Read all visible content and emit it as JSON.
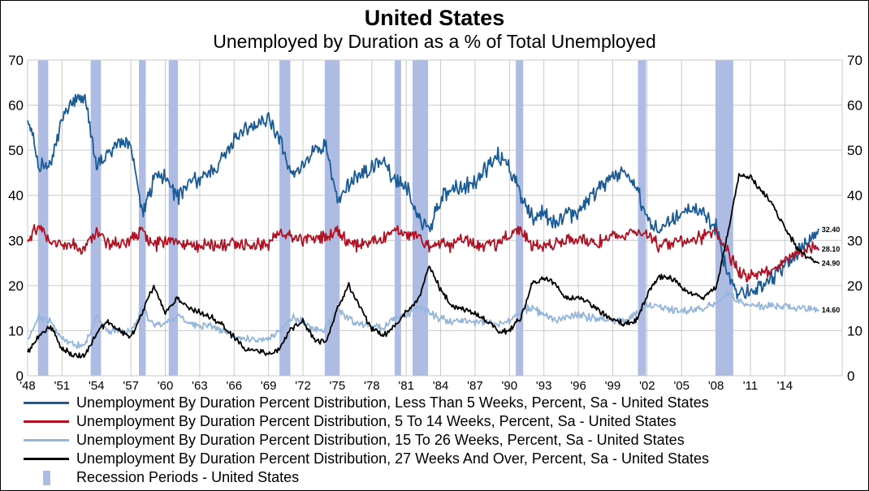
{
  "title": "United States",
  "subtitle": "Unemployed by Duration as a % of Total Unemployed",
  "colors": {
    "less_than_5": "#1A5B96",
    "w5_14": "#B01224",
    "w15_26": "#95B6DB",
    "w27_over": "#000000",
    "recession": "#AEBCE4",
    "grid": "#C9C9C9"
  },
  "legend": [
    {
      "label": "Unemployment By Duration Percent Distribution, Less Than 5 Weeks, Percent, Sa - United States",
      "color_key": "less_than_5",
      "swatch": "line"
    },
    {
      "label": "Unemployment By Duration Percent Distribution, 5 To 14 Weeks, Percent, Sa - United States",
      "color_key": "w5_14",
      "swatch": "line"
    },
    {
      "label": "Unemployment By Duration Percent Distribution, 15 To 26 Weeks, Percent, Sa - United States",
      "color_key": "w15_26",
      "swatch": "line"
    },
    {
      "label": "Unemployment By Duration Percent Distribution, 27 Weeks And Over, Percent, Sa - United States",
      "color_key": "w27_over",
      "swatch": "line"
    },
    {
      "label": "Recession Periods - United States",
      "color_key": "recession",
      "swatch": "bar"
    }
  ],
  "chart_data": {
    "type": "line",
    "title": "United States",
    "subtitle": "Unemployed by Duration as a % of Total Unemployed",
    "ylim": [
      0,
      70
    ],
    "y_ticks": [
      0,
      10,
      20,
      30,
      40,
      50,
      60,
      70
    ],
    "xlim": [
      1948,
      2019
    ],
    "x_start": 1948,
    "x_step_years": 1,
    "x_tick_years": [
      1948,
      1951,
      1954,
      1957,
      1960,
      1963,
      1966,
      1969,
      1972,
      1975,
      1978,
      1981,
      1984,
      1987,
      1990,
      1993,
      1996,
      1999,
      2002,
      2005,
      2008,
      2011,
      2014
    ],
    "x_tick_labels": [
      "'48",
      "'51",
      "'54",
      "'57",
      "'60",
      "'63",
      "'66",
      "'69",
      "'72",
      "'75",
      "'78",
      "'81",
      "'84",
      "'87",
      "'90",
      "'93",
      "'96",
      "'99",
      "'02",
      "'05",
      "'08",
      "'11",
      "'14"
    ],
    "grid": true,
    "legend_position": "bottom",
    "series": [
      {
        "name": "Less Than 5 Weeks",
        "color_key": "less_than_5",
        "noise_amp": 1.7,
        "end_label": "32.40",
        "values": [
          58,
          46,
          47,
          57,
          60,
          62,
          46,
          49,
          52,
          51,
          36,
          43,
          45,
          39,
          43,
          43,
          45,
          48,
          52,
          55,
          56,
          57,
          52,
          45,
          46,
          51,
          51,
          38,
          42,
          45,
          46,
          48,
          43,
          42,
          36,
          32,
          39,
          42,
          42,
          43,
          46,
          49,
          46,
          40,
          35,
          36,
          34,
          36,
          36,
          39,
          42,
          44,
          45,
          42,
          35,
          32,
          34,
          36,
          37,
          36,
          33,
          22,
          18,
          19,
          20,
          22,
          24,
          27,
          30,
          32.4
        ]
      },
      {
        "name": "5 To 14 Weeks",
        "color_key": "w5_14",
        "noise_amp": 1.4,
        "end_label": "28.10",
        "values": [
          30,
          33,
          30,
          29,
          29,
          28,
          32,
          29,
          29,
          30,
          32,
          29,
          30,
          30,
          29,
          29,
          29,
          29,
          29,
          29,
          29,
          29,
          32,
          31,
          30,
          30,
          31,
          32,
          29,
          29,
          30,
          30,
          33,
          31,
          31,
          28,
          29,
          29,
          30,
          29,
          29,
          29,
          31,
          32,
          29,
          29,
          29,
          30,
          30,
          30,
          30,
          31,
          31,
          32,
          31,
          29,
          29,
          30,
          30,
          31,
          32,
          28,
          22.5,
          22,
          23,
          24,
          25.5,
          27,
          28,
          28.1
        ]
      },
      {
        "name": "15 To 26 Weeks",
        "color_key": "w15_26",
        "noise_amp": 0.8,
        "end_label": "14.60",
        "values": [
          8,
          13,
          12,
          8,
          7,
          6.5,
          13,
          10,
          9.5,
          10,
          15,
          11,
          11.5,
          13.5,
          11.5,
          11,
          11,
          10,
          9,
          8,
          8,
          8,
          10,
          13,
          12,
          10,
          10.5,
          15,
          12.5,
          11.5,
          11,
          10.5,
          13,
          13.5,
          15.5,
          14,
          12.5,
          12,
          12.5,
          12,
          12,
          11.5,
          12,
          14.5,
          15,
          13.5,
          12.5,
          13,
          13.5,
          13,
          12.5,
          12.5,
          12,
          14,
          15.5,
          15.5,
          14.5,
          14.5,
          14.5,
          15,
          16,
          18.5,
          16.5,
          15.5,
          15.5,
          15.5,
          15.5,
          15,
          14.8,
          14.6
        ]
      },
      {
        "name": "27 Weeks And Over",
        "color_key": "w27_over",
        "noise_amp": 0.6,
        "end_label": "24.90",
        "values": [
          5,
          9,
          11,
          6,
          4.5,
          4.5,
          9.5,
          12,
          10,
          8.5,
          14,
          20,
          14,
          17,
          15,
          14,
          13,
          11,
          8.5,
          6,
          5.5,
          4.7,
          6,
          10.5,
          12,
          8,
          7.5,
          15,
          20,
          15,
          10.5,
          8.7,
          11,
          14,
          16.5,
          24.5,
          19,
          15.5,
          14.5,
          14,
          12,
          10,
          10,
          13,
          20.5,
          21.5,
          20.5,
          17,
          17.5,
          16,
          14,
          12.5,
          11.5,
          12,
          18,
          22,
          22,
          19.5,
          18,
          17.5,
          19.5,
          31,
          44.5,
          44,
          41,
          37.5,
          33,
          28.5,
          26,
          24.9
        ]
      }
    ],
    "recession_periods": [
      [
        1948.9,
        1949.8
      ],
      [
        1953.5,
        1954.4
      ],
      [
        1957.7,
        1958.3
      ],
      [
        1960.3,
        1961.1
      ],
      [
        1969.95,
        1970.9
      ],
      [
        1973.9,
        1975.2
      ],
      [
        1980.0,
        1980.55
      ],
      [
        1981.55,
        1982.9
      ],
      [
        1990.55,
        1991.2
      ],
      [
        2001.2,
        2001.9
      ],
      [
        2007.95,
        2009.5
      ]
    ]
  }
}
